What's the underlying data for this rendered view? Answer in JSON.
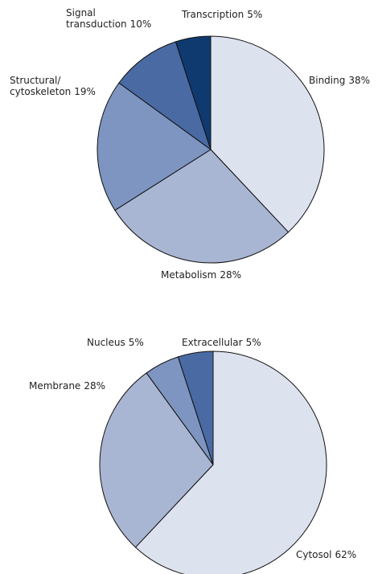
{
  "chart_data": [
    {
      "type": "pie",
      "categories": [
        "Binding",
        "Metabolism",
        "Structural/\ncytoskeleton",
        "Signal\ntransduction",
        "Transcription"
      ],
      "values": [
        38,
        28,
        19,
        10,
        5
      ],
      "value_labels": [
        "38%",
        "28%",
        "19%",
        "10%",
        "5%"
      ],
      "colors": [
        "#dde2ef",
        "#a9b6d3",
        "#7d95c0",
        "#4a6aa3",
        "#0e3a70"
      ]
    },
    {
      "type": "pie",
      "categories": [
        "Cytosol",
        "Membrane",
        "Nucleus",
        "Extracellular"
      ],
      "values": [
        62,
        28,
        5,
        5
      ],
      "value_labels": [
        "62%",
        "28%",
        "5%",
        "5%"
      ],
      "colors": [
        "#dde2ef",
        "#a9b6d3",
        "#7d95c0",
        "#4a6aa3"
      ]
    }
  ]
}
